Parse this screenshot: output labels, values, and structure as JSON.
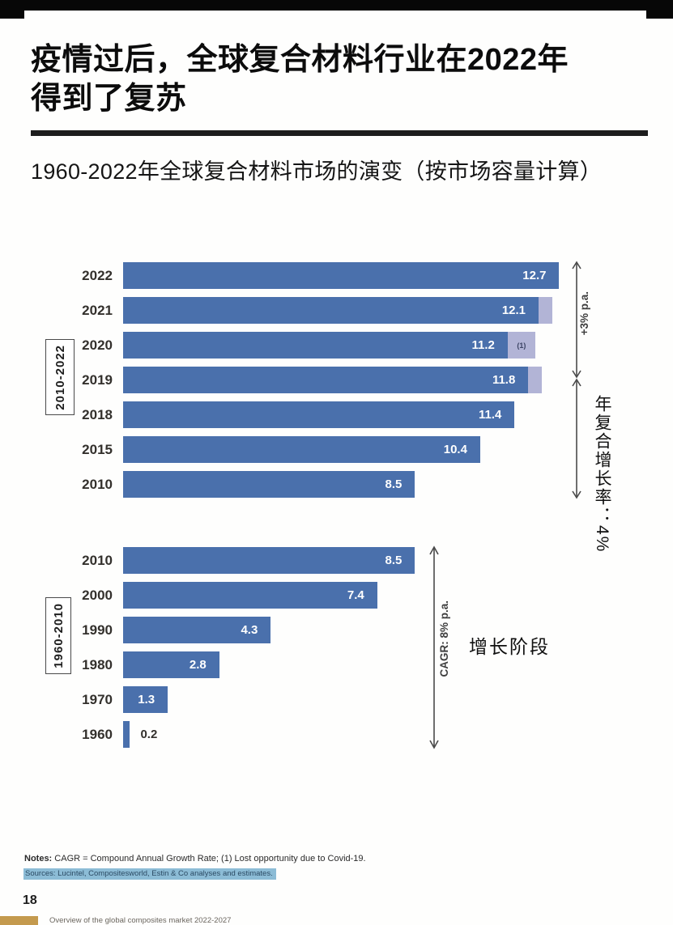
{
  "page": {
    "title_line1": "疫情过后，全球复合材料行业在2022年",
    "title_line2": "得到了复苏",
    "subtitle": "1960-2022年全球复合材料市场的演变（按市场容量计算）",
    "notes_label": "Notes:",
    "notes_text": " CAGR = Compound Annual Growth Rate; (1) Lost opportunity due to Covid-19.",
    "sources_text": "Sources: Lucintel, Compositesworld, Estin & Co analyses and estimates.",
    "page_number": "18",
    "footer_text": "Overview of the global composites market 2022-2027"
  },
  "chart_data": {
    "type": "bar",
    "orientation": "horizontal",
    "title": "1960-2022年全球复合材料市场的演变（按市场容量计算）",
    "xlim": [
      0,
      13
    ],
    "grid": false,
    "legend": "none",
    "groups": [
      {
        "label": "2010-2022",
        "bars": [
          {
            "year": "2022",
            "value": 12.7
          },
          {
            "year": "2021",
            "value": 12.1,
            "lost": 0.4
          },
          {
            "year": "2020",
            "value": 11.2,
            "lost": 0.8,
            "lost_label": "(1)"
          },
          {
            "year": "2019",
            "value": 11.8,
            "lost": 0.4
          },
          {
            "year": "2018",
            "value": 11.4
          },
          {
            "year": "2015",
            "value": 10.4
          },
          {
            "year": "2010",
            "value": 8.5
          }
        ]
      },
      {
        "label": "1960-2010",
        "bars": [
          {
            "year": "2010",
            "value": 8.5
          },
          {
            "year": "2000",
            "value": 7.4
          },
          {
            "year": "1990",
            "value": 4.3
          },
          {
            "year": "1980",
            "value": 2.8
          },
          {
            "year": "1970",
            "value": 1.3
          },
          {
            "year": "1960",
            "value": 0.2,
            "label_outside": true
          }
        ]
      }
    ],
    "annotations": {
      "cagr_2019_2022": "+3% p.a.",
      "cagr_2010_2019": "年复合增长率：4%",
      "cagr_1960_2010": "CAGR: 8% p.a.",
      "growth_phase": "增长阶段"
    },
    "colors": {
      "bar": "#4a70ac",
      "lost": "#b2b4d6",
      "arrow": "#4a4a4a",
      "value_text": "#ffffff"
    }
  }
}
